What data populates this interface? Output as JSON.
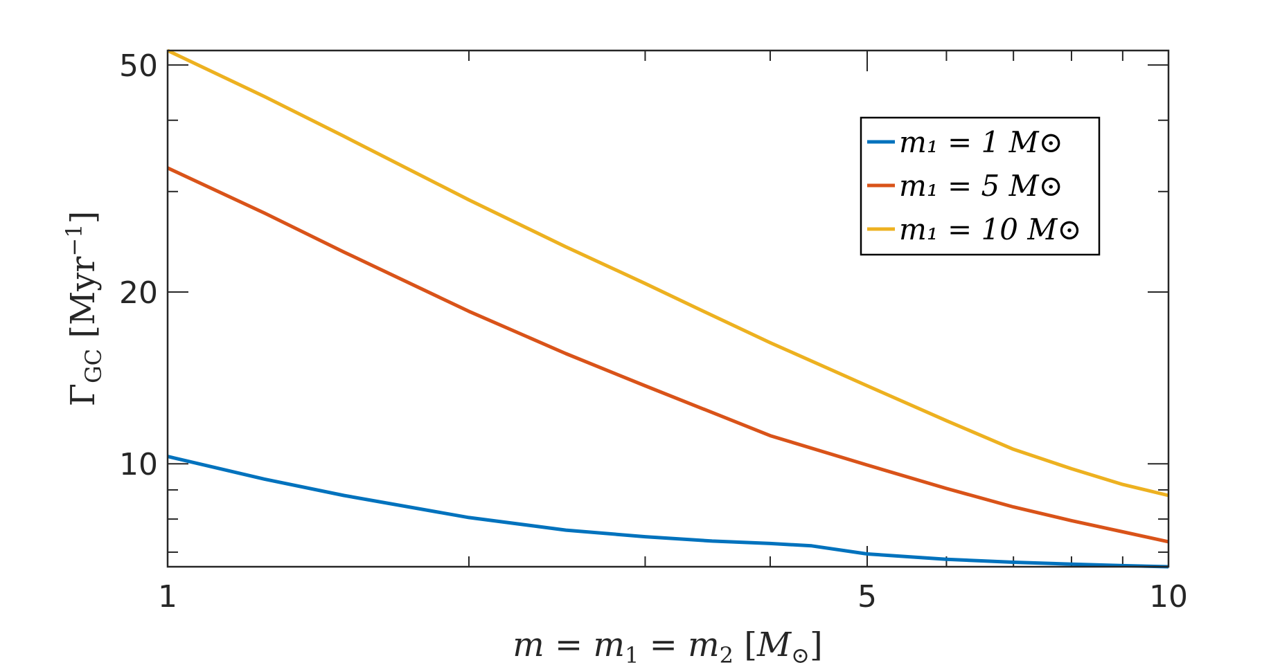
{
  "chart_data": {
    "type": "line",
    "xscale": "log",
    "yscale": "log",
    "xlim": [
      1,
      10
    ],
    "ylim": [
      6.6,
      53
    ],
    "x_ticks_major": [
      1,
      5,
      10
    ],
    "x_tick_labels": [
      "1",
      "5",
      "10"
    ],
    "y_ticks_major": [
      10,
      20,
      50
    ],
    "y_tick_labels": [
      "10",
      "20",
      "50"
    ],
    "xlabel": "m = m₁ = m₂ [M⊙]",
    "ylabel": "ΓGC [Myr⁻¹]",
    "legend": {
      "placement": "top-right",
      "box": true
    },
    "grid": false,
    "series": [
      {
        "name": "m₁ = 1 M⊙",
        "color": "#0072BD",
        "x": [
          1,
          1.25,
          1.5,
          2,
          2.5,
          3,
          3.5,
          4,
          4.4,
          5,
          6,
          7,
          8,
          9,
          10
        ],
        "y": [
          10.3,
          9.4,
          8.8,
          8.05,
          7.65,
          7.45,
          7.32,
          7.25,
          7.18,
          6.95,
          6.8,
          6.72,
          6.67,
          6.63,
          6.6
        ]
      },
      {
        "name": "m₁ = 5 M⊙",
        "color": "#D95319",
        "x": [
          1,
          1.25,
          1.5,
          2,
          2.5,
          3,
          3.5,
          4,
          5,
          6,
          7,
          8,
          9,
          10
        ],
        "y": [
          33,
          27.5,
          23.5,
          18.5,
          15.6,
          13.7,
          12.3,
          11.2,
          9.95,
          9.05,
          8.4,
          7.95,
          7.6,
          7.3
        ]
      },
      {
        "name": "m₁ = 10 M⊙",
        "color": "#EDB120",
        "x": [
          1,
          1.25,
          1.5,
          2,
          2.5,
          3,
          3.5,
          4,
          5,
          6,
          7,
          8,
          9,
          10
        ],
        "y": [
          53,
          44,
          37.5,
          29,
          24,
          20.7,
          18.2,
          16.3,
          13.7,
          11.9,
          10.6,
          9.8,
          9.2,
          8.8
        ]
      }
    ]
  }
}
